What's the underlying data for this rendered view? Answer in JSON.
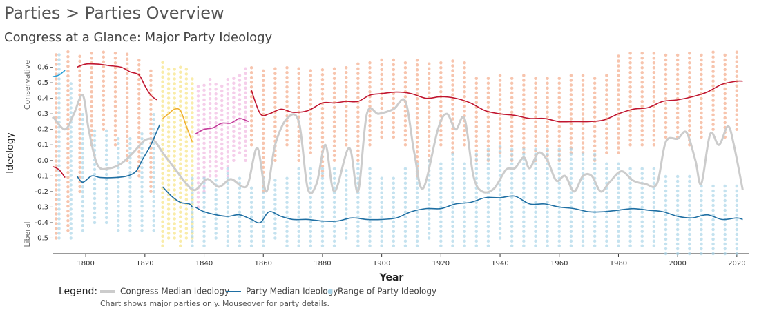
{
  "header": {
    "title": "Parties > Parties Overview"
  },
  "chart_data": {
    "type": "line",
    "title": "Congress at a Glance: Major Party Ideology",
    "x_label": "Year",
    "y_label": "Ideology",
    "annotations": [
      "Conservative",
      "Liberal"
    ],
    "xlim": [
      1789,
      2024
    ],
    "xticks": [
      1800,
      1820,
      1840,
      1860,
      1880,
      1900,
      1920,
      1940,
      1960,
      1980,
      2000,
      2020
    ],
    "ylim": [
      -0.6,
      0.7
    ],
    "yticks": [
      0.6,
      0.5,
      0.4,
      0.3,
      0.2,
      0.1,
      {
        "value": 0,
        "label": "0.0"
      },
      -0.1,
      -0.2,
      -0.3,
      -0.4,
      -0.5
    ],
    "party_ranges": [
      {
        "color": "#f4a582",
        "x": [
          1790,
          1794,
          1798,
          1802,
          1806,
          1810,
          1814,
          1818,
          1822
        ],
        "low": [
          -0.5,
          -0.45,
          -0.2,
          0.1,
          0.2,
          0.1,
          0.0,
          -0.1,
          -0.2
        ],
        "high": [
          0.7,
          0.7,
          0.7,
          0.7,
          0.7,
          0.7,
          0.7,
          0.65,
          0.6
        ]
      },
      {
        "color": "#a6d3e8",
        "x": [
          1791,
          1795,
          1799,
          1803,
          1807,
          1811,
          1815,
          1819,
          1823
        ],
        "low": [
          -0.5,
          -0.5,
          -0.45,
          -0.4,
          -0.4,
          -0.45,
          -0.45,
          -0.45,
          -0.45
        ],
        "high": [
          0.7,
          0.5,
          0.3,
          0.2,
          0.2,
          0.15,
          0.15,
          0.2,
          0.3
        ]
      },
      {
        "color": "#f7e27c",
        "x": [
          1826,
          1828,
          1830,
          1832,
          1834,
          1836
        ],
        "low": [
          -0.55,
          -0.5,
          -0.5,
          -0.55,
          -0.5,
          -0.5
        ],
        "high": [
          0.65,
          0.6,
          0.6,
          0.6,
          0.6,
          0.55
        ]
      },
      {
        "color": "#f0b4df",
        "x": [
          1838,
          1840,
          1842,
          1844,
          1846,
          1848,
          1850,
          1852,
          1854
        ],
        "low": [
          -0.3,
          -0.2,
          -0.1,
          -0.1,
          -0.05,
          -0.1,
          0.0,
          0.05,
          0.0
        ],
        "high": [
          0.5,
          0.5,
          0.55,
          0.5,
          0.5,
          0.55,
          0.55,
          0.55,
          0.6
        ]
      },
      {
        "color": "#f4a582",
        "x": [
          1856,
          1860,
          1864,
          1868,
          1872,
          1876,
          1880,
          1884,
          1888,
          1892,
          1896,
          1900,
          1904,
          1908,
          1912,
          1916,
          1920,
          1924,
          1928,
          1932,
          1936,
          1940,
          1944,
          1948,
          1952,
          1956,
          1960,
          1964,
          1968,
          1972,
          1976,
          1980,
          1984,
          1988,
          1992,
          1996,
          2000,
          2004,
          2008,
          2012,
          2016,
          2020
        ],
        "low": [
          0.1,
          -0.2,
          0.0,
          0.1,
          0.0,
          0.05,
          -0.1,
          0.0,
          0.1,
          0.0,
          0.1,
          0.15,
          0.15,
          0.1,
          -0.1,
          0.0,
          0.1,
          0.05,
          0.1,
          0.0,
          0.0,
          0.05,
          0.0,
          0.05,
          0.0,
          0.0,
          0.0,
          0.05,
          0.05,
          0.0,
          0.05,
          0.05,
          0.1,
          0.1,
          0.1,
          0.15,
          0.15,
          0.1,
          0.15,
          0.2,
          0.15,
          0.2
        ],
        "high": [
          0.6,
          0.6,
          0.6,
          0.6,
          0.6,
          0.6,
          0.6,
          0.6,
          0.6,
          0.65,
          0.65,
          0.65,
          0.65,
          0.65,
          0.65,
          0.65,
          0.65,
          0.65,
          0.65,
          0.55,
          0.55,
          0.55,
          0.55,
          0.55,
          0.55,
          0.55,
          0.55,
          0.55,
          0.55,
          0.55,
          0.55,
          0.7,
          0.7,
          0.7,
          0.7,
          0.7,
          0.7,
          0.7,
          0.7,
          0.7,
          0.7,
          0.7
        ]
      },
      {
        "color": "#a6d3e8",
        "x": [
          1836,
          1840,
          1844,
          1848,
          1852,
          1856,
          1860,
          1864,
          1868,
          1872,
          1876,
          1880,
          1884,
          1888,
          1892,
          1896,
          1900,
          1904,
          1908,
          1912,
          1916,
          1920,
          1924,
          1928,
          1932,
          1936,
          1940,
          1944,
          1948,
          1952,
          1956,
          1960,
          1964,
          1968,
          1972,
          1976,
          1980,
          1984,
          1988,
          1992,
          1996,
          2000,
          2004,
          2008,
          2012,
          2016,
          2020
        ],
        "low": [
          -0.55,
          -0.55,
          -0.5,
          -0.55,
          -0.55,
          -0.55,
          -0.55,
          -0.5,
          -0.55,
          -0.55,
          -0.55,
          -0.55,
          -0.55,
          -0.5,
          -0.55,
          -0.55,
          -0.55,
          -0.55,
          -0.55,
          -0.55,
          -0.5,
          -0.55,
          -0.55,
          -0.55,
          -0.55,
          -0.55,
          -0.5,
          -0.55,
          -0.55,
          -0.55,
          -0.55,
          -0.55,
          -0.55,
          -0.55,
          -0.55,
          -0.55,
          -0.55,
          -0.55,
          -0.55,
          -0.55,
          -0.6,
          -0.6,
          -0.6,
          -0.6,
          -0.6,
          -0.6,
          -0.6
        ],
        "high": [
          -0.1,
          -0.1,
          -0.1,
          -0.05,
          -0.1,
          -0.15,
          -0.1,
          -0.1,
          -0.1,
          -0.05,
          -0.05,
          -0.05,
          -0.05,
          -0.05,
          0.0,
          -0.05,
          -0.1,
          -0.1,
          -0.05,
          0.0,
          0.0,
          0.0,
          0.05,
          0.0,
          0.05,
          0.1,
          0.1,
          0.1,
          0.1,
          0.1,
          0.1,
          0.1,
          0.1,
          0.05,
          0.05,
          0.0,
          0.0,
          -0.05,
          -0.05,
          -0.05,
          -0.1,
          -0.1,
          -0.1,
          -0.15,
          -0.15,
          -0.15,
          -0.15
        ]
      }
    ],
    "congress_median": {
      "color": "#cccccc",
      "x": [
        1789,
        1793,
        1796,
        1799,
        1801,
        1804,
        1808,
        1812,
        1816,
        1820,
        1823,
        1826,
        1830,
        1834,
        1837,
        1841,
        1845,
        1849,
        1853,
        1855,
        1858,
        1861,
        1864,
        1868,
        1872,
        1875,
        1878,
        1881,
        1884,
        1889,
        1892,
        1895,
        1899,
        1904,
        1908,
        1911,
        1914,
        1919,
        1922,
        1925,
        1928,
        1931,
        1934,
        1938,
        1942,
        1945,
        1948,
        1950,
        1953,
        1956,
        1959,
        1962,
        1965,
        1968,
        1971,
        1974,
        1977,
        1981,
        1985,
        1989,
        1993,
        1996,
        2000,
        2003,
        2006,
        2008,
        2011,
        2014,
        2017,
        2019,
        2022
      ],
      "values": [
        0.28,
        0.2,
        0.3,
        0.42,
        0.2,
        -0.03,
        -0.05,
        -0.02,
        0.05,
        0.13,
        0.13,
        0.05,
        -0.05,
        -0.15,
        -0.19,
        -0.12,
        -0.17,
        -0.12,
        -0.17,
        -0.14,
        0.08,
        -0.2,
        0.1,
        0.27,
        0.25,
        -0.18,
        -0.15,
        0.1,
        -0.2,
        0.08,
        -0.2,
        0.3,
        0.3,
        0.33,
        0.38,
        0.05,
        -0.18,
        0.2,
        0.3,
        0.2,
        0.27,
        -0.1,
        -0.2,
        -0.18,
        -0.06,
        -0.05,
        0.02,
        -0.05,
        0.05,
        0.0,
        -0.13,
        -0.1,
        -0.2,
        -0.1,
        -0.1,
        -0.2,
        -0.14,
        -0.07,
        -0.13,
        -0.15,
        -0.15,
        0.12,
        0.14,
        0.18,
        0.0,
        -0.15,
        0.17,
        0.1,
        0.22,
        0.1,
        -0.19
      ]
    },
    "party_medians": [
      {
        "color": "#2a9fd6",
        "x": [
          1789,
          1791,
          1793
        ],
        "values": [
          0.54,
          0.55,
          0.58
        ]
      },
      {
        "color": "#c0152f",
        "x": [
          1789,
          1791,
          1793
        ],
        "values": [
          -0.04,
          -0.06,
          -0.11
        ]
      },
      {
        "color": "#c0152f",
        "x": [
          1797,
          1800,
          1804,
          1808,
          1812,
          1815,
          1818,
          1820,
          1822,
          1824
        ],
        "values": [
          0.6,
          0.62,
          0.62,
          0.61,
          0.6,
          0.57,
          0.55,
          0.48,
          0.42,
          0.39
        ]
      },
      {
        "color": "#1f6fa3",
        "x": [
          1797,
          1799,
          1802,
          1805,
          1810,
          1814,
          1817,
          1819,
          1822,
          1825
        ],
        "values": [
          -0.1,
          -0.14,
          -0.1,
          -0.11,
          -0.11,
          -0.1,
          -0.07,
          0.0,
          0.1,
          0.23
        ]
      },
      {
        "color": "#f0b030",
        "x": [
          1826,
          1828,
          1830,
          1832,
          1834,
          1836
        ],
        "values": [
          0.27,
          0.3,
          0.33,
          0.32,
          0.22,
          0.12
        ]
      },
      {
        "color": "#c43c9a",
        "x": [
          1837,
          1840,
          1843,
          1846,
          1849,
          1852,
          1855
        ],
        "values": [
          0.17,
          0.2,
          0.21,
          0.24,
          0.24,
          0.27,
          0.25
        ]
      },
      {
        "color": "#c0152f",
        "x": [
          1856,
          1859,
          1862,
          1866,
          1870,
          1875,
          1880,
          1884,
          1888,
          1892,
          1896,
          1900,
          1905,
          1910,
          1915,
          1920,
          1925,
          1930,
          1935,
          1940,
          1945,
          1950,
          1955,
          1960,
          1965,
          1970,
          1975,
          1980,
          1985,
          1990,
          1995,
          2000,
          2005,
          2010,
          2015,
          2020,
          2022
        ],
        "values": [
          0.45,
          0.3,
          0.3,
          0.33,
          0.31,
          0.32,
          0.37,
          0.37,
          0.38,
          0.38,
          0.42,
          0.43,
          0.44,
          0.43,
          0.4,
          0.41,
          0.4,
          0.37,
          0.32,
          0.3,
          0.29,
          0.27,
          0.27,
          0.25,
          0.25,
          0.25,
          0.26,
          0.3,
          0.33,
          0.34,
          0.38,
          0.39,
          0.41,
          0.44,
          0.49,
          0.51,
          0.51
        ]
      },
      {
        "color": "#1f6fa3",
        "x": [
          1826,
          1829,
          1832,
          1835,
          1836
        ],
        "values": [
          -0.17,
          -0.23,
          -0.27,
          -0.28,
          -0.3
        ]
      },
      {
        "color": "#1f6fa3",
        "x": [
          1837,
          1840,
          1844,
          1848,
          1852,
          1856,
          1859,
          1862,
          1866,
          1870,
          1875,
          1880,
          1885,
          1890,
          1895,
          1900,
          1905,
          1910,
          1915,
          1920,
          1925,
          1930,
          1935,
          1940,
          1945,
          1950,
          1955,
          1960,
          1965,
          1970,
          1975,
          1980,
          1985,
          1990,
          1995,
          2000,
          2005,
          2010,
          2015,
          2020,
          2022
        ],
        "values": [
          -0.3,
          -0.33,
          -0.35,
          -0.36,
          -0.35,
          -0.38,
          -0.4,
          -0.33,
          -0.36,
          -0.38,
          -0.38,
          -0.39,
          -0.39,
          -0.37,
          -0.38,
          -0.38,
          -0.37,
          -0.33,
          -0.31,
          -0.31,
          -0.28,
          -0.27,
          -0.24,
          -0.24,
          -0.23,
          -0.28,
          -0.28,
          -0.3,
          -0.31,
          -0.33,
          -0.33,
          -0.32,
          -0.31,
          -0.32,
          -0.33,
          -0.36,
          -0.37,
          -0.35,
          -0.38,
          -0.37,
          -0.38
        ]
      }
    ],
    "legend": {
      "label": "Legend:",
      "items": [
        {
          "label": "Congress Median Ideology",
          "color": "#cccccc",
          "kind": "line"
        },
        {
          "label": "Party Median Ideology",
          "color": "#1f6fa3",
          "kind": "line"
        },
        {
          "label": "Range of Party Ideology",
          "color": "#a6d3e8",
          "kind": "dot"
        }
      ],
      "note": "Chart shows major parties only. Mouseover for party details."
    }
  }
}
